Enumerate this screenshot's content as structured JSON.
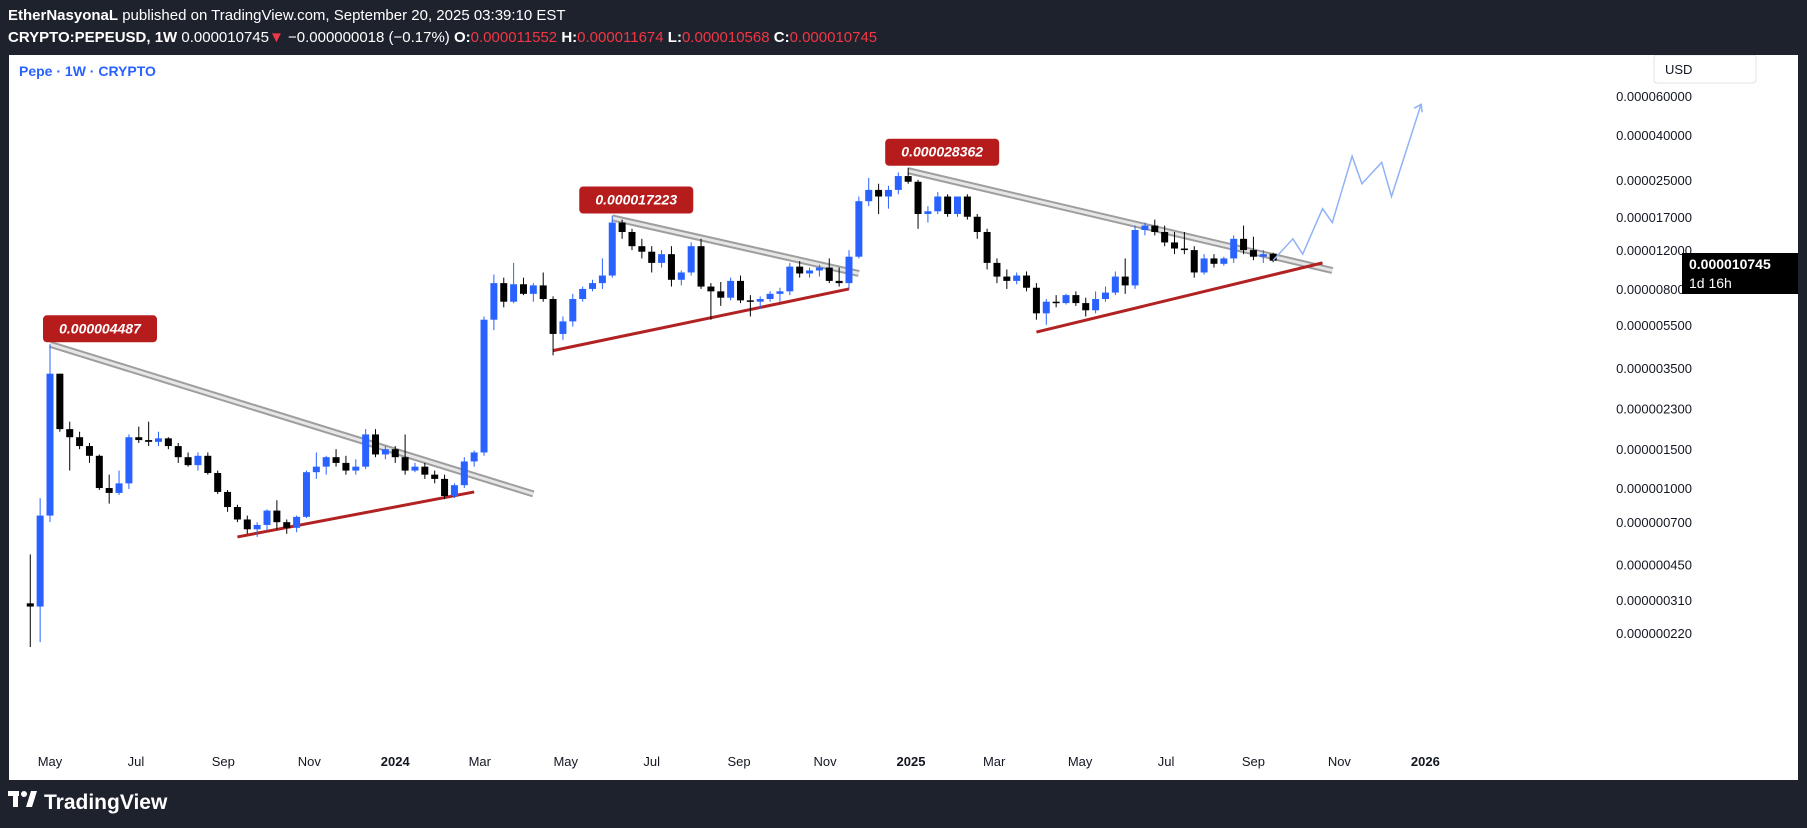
{
  "header": {
    "author": "EtherNasyonaL",
    "published_text": "published on TradingView.com, September 20, 2025 03:39:10 EST",
    "symbol": "CRYPTO:PEPEUSD, 1W",
    "last": "0.000010745",
    "change_arrow": "▼",
    "change": "−0.000000018 (−0.17%)",
    "o_label": "O:",
    "o_value": "0.000011552",
    "h_label": "H:",
    "h_value": "0.000011674",
    "l_label": "L:",
    "l_value": "0.000010568",
    "c_label": "C:",
    "c_value": "0.000010745"
  },
  "chart_title": "Pepe · 1W · CRYPTO",
  "currency_button": "USD",
  "brand": "TradingView",
  "price_label": {
    "value": "0.000010745",
    "countdown": "1d 16h"
  },
  "colors": {
    "up": "#2962ff",
    "down": "#000000",
    "support": "#b22222",
    "resistance": "#9e9e9e",
    "callout": "#b71c1c",
    "projection": "#8fb3f5"
  },
  "chart_data": {
    "type": "candlestick",
    "y_scale": "log",
    "ylim": [
      1.8e-07,
      8.5e-07
    ],
    "y_ticks": [
      "0.000060000",
      "0.000040000",
      "0.000025000",
      "0.000017000",
      "0.000012000",
      "0.000008000",
      "0.000005500",
      "0.000003500",
      "0.000002300",
      "0.000001500",
      "0.000001000",
      "0.000000700",
      "0.000000450",
      "0.000000310",
      "0.000000220"
    ],
    "x_ticks": [
      "May",
      "Jul",
      "Sep",
      "Nov",
      "2024",
      "Mar",
      "May",
      "Jul",
      "Sep",
      "Nov",
      "2025",
      "Mar",
      "May",
      "Jul",
      "Sep",
      "Nov",
      "2026"
    ],
    "callouts": [
      "0.000004487",
      "0.000017223",
      "0.000028362"
    ],
    "candles": [
      {
        "x": "2023-04-17",
        "o": 3e-07,
        "h": 5e-07,
        "l": 1.9e-07,
        "c": 2.9e-07
      },
      {
        "x": "2023-04-24",
        "o": 2.9e-07,
        "h": 9e-07,
        "l": 2e-07,
        "c": 7.5e-07
      },
      {
        "x": "2023-05-01",
        "o": 7.5e-07,
        "h": 4.487e-06,
        "l": 7e-07,
        "c": 3.3e-06
      },
      {
        "x": "2023-05-08",
        "o": 3.3e-06,
        "h": 3.3e-06,
        "l": 1.8e-06,
        "c": 1.85e-06
      },
      {
        "x": "2023-05-15",
        "o": 1.85e-06,
        "h": 2e-06,
        "l": 1.2e-06,
        "c": 1.7e-06
      },
      {
        "x": "2023-05-22",
        "o": 1.7e-06,
        "h": 1.8e-06,
        "l": 1.5e-06,
        "c": 1.55e-06
      },
      {
        "x": "2023-05-29",
        "o": 1.55e-06,
        "h": 1.6e-06,
        "l": 1.3e-06,
        "c": 1.4e-06
      },
      {
        "x": "2023-06-05",
        "o": 1.4e-06,
        "h": 1.42e-06,
        "l": 9.8e-07,
        "c": 1e-06
      },
      {
        "x": "2023-06-12",
        "o": 1e-06,
        "h": 1.15e-06,
        "l": 8.5e-07,
        "c": 9.5e-07
      },
      {
        "x": "2023-06-19",
        "o": 9.5e-07,
        "h": 1.2e-06,
        "l": 9.3e-07,
        "c": 1.05e-06
      },
      {
        "x": "2023-06-26",
        "o": 1.05e-06,
        "h": 1.75e-06,
        "l": 9.9e-07,
        "c": 1.7e-06
      },
      {
        "x": "2023-07-03",
        "o": 1.7e-06,
        "h": 1.9e-06,
        "l": 1.6e-06,
        "c": 1.65e-06
      },
      {
        "x": "2023-07-10",
        "o": 1.65e-06,
        "h": 2e-06,
        "l": 1.55e-06,
        "c": 1.62e-06
      },
      {
        "x": "2023-07-17",
        "o": 1.62e-06,
        "h": 1.8e-06,
        "l": 1.55e-06,
        "c": 1.68e-06
      },
      {
        "x": "2023-07-24",
        "o": 1.68e-06,
        "h": 1.7e-06,
        "l": 1.5e-06,
        "c": 1.55e-06
      },
      {
        "x": "2023-07-31",
        "o": 1.55e-06,
        "h": 1.6e-06,
        "l": 1.3e-06,
        "c": 1.38e-06
      },
      {
        "x": "2023-08-07",
        "o": 1.38e-06,
        "h": 1.45e-06,
        "l": 1.25e-06,
        "c": 1.27e-06
      },
      {
        "x": "2023-08-14",
        "o": 1.27e-06,
        "h": 1.45e-06,
        "l": 1.2e-06,
        "c": 1.4e-06
      },
      {
        "x": "2023-08-21",
        "o": 1.4e-06,
        "h": 1.45e-06,
        "l": 1.15e-06,
        "c": 1.17e-06
      },
      {
        "x": "2023-08-28",
        "o": 1.17e-06,
        "h": 1.2e-06,
        "l": 9.4e-07,
        "c": 9.6e-07
      },
      {
        "x": "2023-09-04",
        "o": 9.6e-07,
        "h": 9.8e-07,
        "l": 7.8e-07,
        "c": 8.2e-07
      },
      {
        "x": "2023-09-11",
        "o": 8.2e-07,
        "h": 8.4e-07,
        "l": 7e-07,
        "c": 7.2e-07
      },
      {
        "x": "2023-09-18",
        "o": 7.2e-07,
        "h": 7.5e-07,
        "l": 6.2e-07,
        "c": 6.5e-07
      },
      {
        "x": "2023-09-25",
        "o": 6.5e-07,
        "h": 7e-07,
        "l": 6e-07,
        "c": 6.8e-07
      },
      {
        "x": "2023-10-02",
        "o": 6.8e-07,
        "h": 8e-07,
        "l": 6.4e-07,
        "c": 7.9e-07
      },
      {
        "x": "2023-10-09",
        "o": 7.9e-07,
        "h": 8.8e-07,
        "l": 6.5e-07,
        "c": 7e-07
      },
      {
        "x": "2023-10-16",
        "o": 7e-07,
        "h": 7.2e-07,
        "l": 6.2e-07,
        "c": 6.6e-07
      },
      {
        "x": "2023-10-23",
        "o": 6.6e-07,
        "h": 7.5e-07,
        "l": 6.3e-07,
        "c": 7.4e-07
      },
      {
        "x": "2023-10-30",
        "o": 7.4e-07,
        "h": 1.2e-06,
        "l": 7.3e-07,
        "c": 1.18e-06
      },
      {
        "x": "2023-11-06",
        "o": 1.18e-06,
        "h": 1.45e-06,
        "l": 1.1e-06,
        "c": 1.25e-06
      },
      {
        "x": "2023-11-13",
        "o": 1.25e-06,
        "h": 1.4e-06,
        "l": 1.15e-06,
        "c": 1.38e-06
      },
      {
        "x": "2023-11-20",
        "o": 1.38e-06,
        "h": 1.5e-06,
        "l": 1.25e-06,
        "c": 1.3e-06
      },
      {
        "x": "2023-11-27",
        "o": 1.3e-06,
        "h": 1.4e-06,
        "l": 1.15e-06,
        "c": 1.2e-06
      },
      {
        "x": "2023-12-04",
        "o": 1.2e-06,
        "h": 1.35e-06,
        "l": 1.15e-06,
        "c": 1.25e-06
      },
      {
        "x": "2023-12-11",
        "o": 1.25e-06,
        "h": 1.85e-06,
        "l": 1.22e-06,
        "c": 1.75e-06
      },
      {
        "x": "2023-12-18",
        "o": 1.75e-06,
        "h": 1.85e-06,
        "l": 1.38e-06,
        "c": 1.42e-06
      },
      {
        "x": "2023-12-25",
        "o": 1.42e-06,
        "h": 1.55e-06,
        "l": 1.35e-06,
        "c": 1.5e-06
      },
      {
        "x": "2024-01-01",
        "o": 1.5e-06,
        "h": 1.55e-06,
        "l": 1.3e-06,
        "c": 1.38e-06
      },
      {
        "x": "2024-01-08",
        "o": 1.38e-06,
        "h": 1.75e-06,
        "l": 1.15e-06,
        "c": 1.2e-06
      },
      {
        "x": "2024-01-15",
        "o": 1.2e-06,
        "h": 1.3e-06,
        "l": 1.18e-06,
        "c": 1.25e-06
      },
      {
        "x": "2024-01-22",
        "o": 1.25e-06,
        "h": 1.3e-06,
        "l": 1.1e-06,
        "c": 1.15e-06
      },
      {
        "x": "2024-01-29",
        "o": 1.15e-06,
        "h": 1.2e-06,
        "l": 1.05e-06,
        "c": 1.1e-06
      },
      {
        "x": "2024-02-05",
        "o": 1.1e-06,
        "h": 1.15e-06,
        "l": 8.9e-07,
        "c": 9.2e-07
      },
      {
        "x": "2024-02-12",
        "o": 9.2e-07,
        "h": 1.05e-06,
        "l": 9e-07,
        "c": 1.03e-06
      },
      {
        "x": "2024-02-19",
        "o": 1.03e-06,
        "h": 1.38e-06,
        "l": 1e-06,
        "c": 1.32e-06
      },
      {
        "x": "2024-02-26",
        "o": 1.32e-06,
        "h": 1.48e-06,
        "l": 1.25e-06,
        "c": 1.45e-06
      },
      {
        "x": "2024-03-04",
        "o": 1.45e-06,
        "h": 6e-06,
        "l": 1.4e-06,
        "c": 5.8e-06
      },
      {
        "x": "2024-03-11",
        "o": 5.8e-06,
        "h": 9.3e-06,
        "l": 5.2e-06,
        "c": 8.5e-06
      },
      {
        "x": "2024-03-18",
        "o": 8.5e-06,
        "h": 9e-06,
        "l": 6.6e-06,
        "c": 7e-06
      },
      {
        "x": "2024-03-25",
        "o": 7e-06,
        "h": 1.05e-05,
        "l": 6.9e-06,
        "c": 8.4e-06
      },
      {
        "x": "2024-04-01",
        "o": 8.4e-06,
        "h": 9e-06,
        "l": 7.5e-06,
        "c": 7.6e-06
      },
      {
        "x": "2024-04-08",
        "o": 7.6e-06,
        "h": 8.5e-06,
        "l": 7e-06,
        "c": 8.3e-06
      },
      {
        "x": "2024-04-15",
        "o": 8.3e-06,
        "h": 9.5e-06,
        "l": 7e-06,
        "c": 7.2e-06
      },
      {
        "x": "2024-04-22",
        "o": 7.2e-06,
        "h": 7.4e-06,
        "l": 4e-06,
        "c": 5e-06
      },
      {
        "x": "2024-04-29",
        "o": 5e-06,
        "h": 6e-06,
        "l": 4.7e-06,
        "c": 5.7e-06
      },
      {
        "x": "2024-05-06",
        "o": 5.7e-06,
        "h": 7.6e-06,
        "l": 5.4e-06,
        "c": 7.2e-06
      },
      {
        "x": "2024-05-13",
        "o": 7.2e-06,
        "h": 8.2e-06,
        "l": 7e-06,
        "c": 8e-06
      },
      {
        "x": "2024-05-20",
        "o": 8e-06,
        "h": 8.8e-06,
        "l": 7.8e-06,
        "c": 8.5e-06
      },
      {
        "x": "2024-05-27",
        "o": 8.5e-06,
        "h": 1.1e-05,
        "l": 8e-06,
        "c": 9.2e-06
      },
      {
        "x": "2024-06-03",
        "o": 9.2e-06,
        "h": 1.7223e-05,
        "l": 9e-06,
        "c": 1.6e-05
      },
      {
        "x": "2024-06-10",
        "o": 1.6e-05,
        "h": 1.65e-05,
        "l": 1.35e-05,
        "c": 1.45e-05
      },
      {
        "x": "2024-06-17",
        "o": 1.45e-05,
        "h": 1.5e-05,
        "l": 1.2e-05,
        "c": 1.25e-05
      },
      {
        "x": "2024-06-24",
        "o": 1.25e-05,
        "h": 1.35e-05,
        "l": 1.1e-05,
        "c": 1.18e-05
      },
      {
        "x": "2024-07-01",
        "o": 1.18e-05,
        "h": 1.25e-05,
        "l": 9.5e-06,
        "c": 1.05e-05
      },
      {
        "x": "2024-07-08",
        "o": 1.05e-05,
        "h": 1.2e-05,
        "l": 1e-05,
        "c": 1.15e-05
      },
      {
        "x": "2024-07-15",
        "o": 1.15e-05,
        "h": 1.25e-05,
        "l": 8.2e-06,
        "c": 8.8e-06
      },
      {
        "x": "2024-07-22",
        "o": 8.8e-06,
        "h": 9.7e-06,
        "l": 8.3e-06,
        "c": 9.5e-06
      },
      {
        "x": "2024-07-29",
        "o": 9.5e-06,
        "h": 1.3e-05,
        "l": 9.2e-06,
        "c": 1.25e-05
      },
      {
        "x": "2024-08-05",
        "o": 1.25e-05,
        "h": 1.35e-05,
        "l": 8e-06,
        "c": 8.2e-06
      },
      {
        "x": "2024-08-12",
        "o": 8.2e-06,
        "h": 8.5e-06,
        "l": 5.8e-06,
        "c": 7.8e-06
      },
      {
        "x": "2024-08-19",
        "o": 7.8e-06,
        "h": 8.6e-06,
        "l": 6.7e-06,
        "c": 7.3e-06
      },
      {
        "x": "2024-08-26",
        "o": 7.3e-06,
        "h": 9e-06,
        "l": 7.1e-06,
        "c": 8.7e-06
      },
      {
        "x": "2024-09-02",
        "o": 8.7e-06,
        "h": 9.2e-06,
        "l": 6.9e-06,
        "c": 7.1e-06
      },
      {
        "x": "2024-09-09",
        "o": 7.1e-06,
        "h": 7.5e-06,
        "l": 6e-06,
        "c": 7e-06
      },
      {
        "x": "2024-09-16",
        "o": 7e-06,
        "h": 7.4e-06,
        "l": 6.5e-06,
        "c": 7.2e-06
      },
      {
        "x": "2024-09-23",
        "o": 7.2e-06,
        "h": 7.8e-06,
        "l": 7e-06,
        "c": 7.6e-06
      },
      {
        "x": "2024-09-30",
        "o": 7.6e-06,
        "h": 8.1e-06,
        "l": 7e-06,
        "c": 7.8e-06
      },
      {
        "x": "2024-10-07",
        "o": 7.8e-06,
        "h": 1.05e-05,
        "l": 7.5e-06,
        "c": 1.01e-05
      },
      {
        "x": "2024-10-14",
        "o": 1.01e-05,
        "h": 1.07e-05,
        "l": 9e-06,
        "c": 9.4e-06
      },
      {
        "x": "2024-10-21",
        "o": 9.4e-06,
        "h": 1e-05,
        "l": 9e-06,
        "c": 9.7e-06
      },
      {
        "x": "2024-10-28",
        "o": 9.7e-06,
        "h": 1.03e-05,
        "l": 9.1e-06,
        "c": 1e-05
      },
      {
        "x": "2024-11-04",
        "o": 1e-05,
        "h": 1.1e-05,
        "l": 8.5e-06,
        "c": 8.7e-06
      },
      {
        "x": "2024-11-11",
        "o": 8.7e-06,
        "h": 1e-05,
        "l": 8.2e-06,
        "c": 8.5e-06
      },
      {
        "x": "2024-11-18",
        "o": 8.5e-06,
        "h": 1.2e-05,
        "l": 8e-06,
        "c": 1.12e-05
      },
      {
        "x": "2024-11-25",
        "o": 1.12e-05,
        "h": 2.1e-05,
        "l": 1.1e-05,
        "c": 2e-05
      },
      {
        "x": "2024-12-02",
        "o": 2e-05,
        "h": 2.55e-05,
        "l": 1.9e-05,
        "c": 2.25e-05
      },
      {
        "x": "2024-12-09",
        "o": 2.25e-05,
        "h": 2.4e-05,
        "l": 1.75e-05,
        "c": 2.1e-05
      },
      {
        "x": "2024-12-16",
        "o": 2.1e-05,
        "h": 2.35e-05,
        "l": 1.85e-05,
        "c": 2.25e-05
      },
      {
        "x": "2024-12-23",
        "o": 2.25e-05,
        "h": 2.7e-05,
        "l": 2.15e-05,
        "c": 2.6e-05
      },
      {
        "x": "2024-12-30",
        "o": 2.6e-05,
        "h": 2.8362e-05,
        "l": 2.4e-05,
        "c": 2.45e-05
      },
      {
        "x": "2025-01-06",
        "o": 2.45e-05,
        "h": 2.5e-05,
        "l": 1.5e-05,
        "c": 1.75e-05
      },
      {
        "x": "2025-01-13",
        "o": 1.75e-05,
        "h": 1.9e-05,
        "l": 1.6e-05,
        "c": 1.8e-05
      },
      {
        "x": "2025-01-20",
        "o": 1.8e-05,
        "h": 2.2e-05,
        "l": 1.75e-05,
        "c": 2.1e-05
      },
      {
        "x": "2025-01-27",
        "o": 2.1e-05,
        "h": 2.15e-05,
        "l": 1.7e-05,
        "c": 1.75e-05
      },
      {
        "x": "2025-02-03",
        "o": 1.75e-05,
        "h": 2.1e-05,
        "l": 1.7e-05,
        "c": 2.1e-05
      },
      {
        "x": "2025-02-10",
        "o": 2.1e-05,
        "h": 2.15e-05,
        "l": 1.65e-05,
        "c": 1.7e-05
      },
      {
        "x": "2025-02-17",
        "o": 1.7e-05,
        "h": 1.75e-05,
        "l": 1.35e-05,
        "c": 1.45e-05
      },
      {
        "x": "2025-02-24",
        "o": 1.45e-05,
        "h": 1.5e-05,
        "l": 9.8e-06,
        "c": 1.05e-05
      },
      {
        "x": "2025-03-03",
        "o": 1.05e-05,
        "h": 1.1e-05,
        "l": 8.5e-06,
        "c": 9.1e-06
      },
      {
        "x": "2025-03-10",
        "o": 9.1e-06,
        "h": 9.8e-06,
        "l": 8e-06,
        "c": 8.7e-06
      },
      {
        "x": "2025-03-17",
        "o": 8.7e-06,
        "h": 9.5e-06,
        "l": 8.4e-06,
        "c": 9.2e-06
      },
      {
        "x": "2025-03-24",
        "o": 9.2e-06,
        "h": 9.6e-06,
        "l": 7.8e-06,
        "c": 8.1e-06
      },
      {
        "x": "2025-03-31",
        "o": 8.1e-06,
        "h": 8.5e-06,
        "l": 5.8e-06,
        "c": 6.2e-06
      },
      {
        "x": "2025-04-07",
        "o": 6.2e-06,
        "h": 7.2e-06,
        "l": 5.5e-06,
        "c": 7e-06
      },
      {
        "x": "2025-04-14",
        "o": 7e-06,
        "h": 7.5e-06,
        "l": 6.6e-06,
        "c": 6.9e-06
      },
      {
        "x": "2025-04-21",
        "o": 6.9e-06,
        "h": 7.6e-06,
        "l": 6.8e-06,
        "c": 7.5e-06
      },
      {
        "x": "2025-04-28",
        "o": 7.5e-06,
        "h": 7.8e-06,
        "l": 6.7e-06,
        "c": 6.9e-06
      },
      {
        "x": "2025-05-05",
        "o": 6.9e-06,
        "h": 7.3e-06,
        "l": 6e-06,
        "c": 6.4e-06
      },
      {
        "x": "2025-05-12",
        "o": 6.4e-06,
        "h": 7.8e-06,
        "l": 6.2e-06,
        "c": 7.2e-06
      },
      {
        "x": "2025-05-19",
        "o": 7.2e-06,
        "h": 8.2e-06,
        "l": 7e-06,
        "c": 7.7e-06
      },
      {
        "x": "2025-05-26",
        "o": 7.7e-06,
        "h": 9.6e-06,
        "l": 7.5e-06,
        "c": 9.1e-06
      },
      {
        "x": "2025-06-02",
        "o": 9.1e-06,
        "h": 1.1e-05,
        "l": 7.6e-06,
        "c": 8.3e-06
      },
      {
        "x": "2025-06-09",
        "o": 8.3e-06,
        "h": 1.55e-05,
        "l": 8e-06,
        "c": 1.48e-05
      },
      {
        "x": "2025-06-16",
        "o": 1.48e-05,
        "h": 1.6e-05,
        "l": 1.4e-05,
        "c": 1.55e-05
      },
      {
        "x": "2025-06-23",
        "o": 1.55e-05,
        "h": 1.65e-05,
        "l": 1.4e-05,
        "c": 1.45e-05
      },
      {
        "x": "2025-06-30",
        "o": 1.45e-05,
        "h": 1.55e-05,
        "l": 1.25e-05,
        "c": 1.3e-05
      },
      {
        "x": "2025-07-07",
        "o": 1.3e-05,
        "h": 1.45e-05,
        "l": 1.15e-05,
        "c": 1.22e-05
      },
      {
        "x": "2025-07-14",
        "o": 1.22e-05,
        "h": 1.45e-05,
        "l": 1.15e-05,
        "c": 1.2e-05
      },
      {
        "x": "2025-07-21",
        "o": 1.2e-05,
        "h": 1.25e-05,
        "l": 9e-06,
        "c": 9.5e-06
      },
      {
        "x": "2025-07-28",
        "o": 9.5e-06,
        "h": 1.15e-05,
        "l": 9.3e-06,
        "c": 1.1e-05
      },
      {
        "x": "2025-08-04",
        "o": 1.1e-05,
        "h": 1.15e-05,
        "l": 1e-05,
        "c": 1.04e-05
      },
      {
        "x": "2025-08-11",
        "o": 1.04e-05,
        "h": 1.12e-05,
        "l": 1.02e-05,
        "c": 1.1e-05
      },
      {
        "x": "2025-08-18",
        "o": 1.1e-05,
        "h": 1.4e-05,
        "l": 1.05e-05,
        "c": 1.35e-05
      },
      {
        "x": "2025-08-25",
        "o": 1.35e-05,
        "h": 1.55e-05,
        "l": 1.15e-05,
        "c": 1.2e-05
      },
      {
        "x": "2025-09-01",
        "o": 1.2e-05,
        "h": 1.38e-05,
        "l": 1.08e-05,
        "c": 1.12e-05
      },
      {
        "x": "2025-09-08",
        "o": 1.12e-05,
        "h": 1.2e-05,
        "l": 1.05e-05,
        "c": 1.15e-05
      },
      {
        "x": "2025-09-15",
        "o": 1.1552e-05,
        "h": 1.1674e-05,
        "l": 1.0568e-05,
        "c": 1.0745e-05
      }
    ]
  }
}
